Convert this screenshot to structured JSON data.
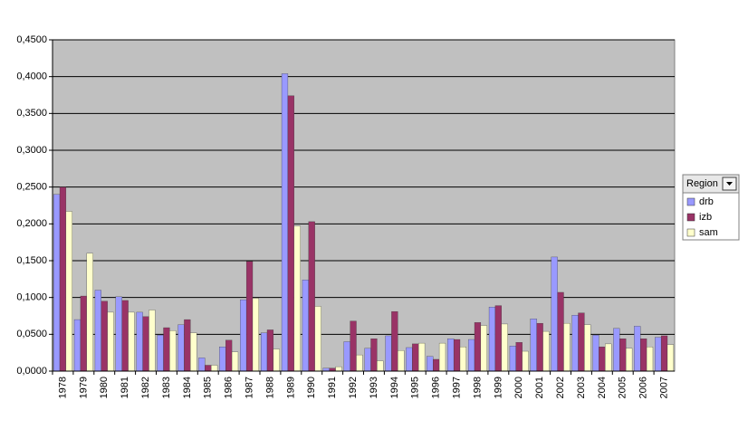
{
  "chart_data": {
    "type": "bar",
    "categories": [
      "1978",
      "1979",
      "1980",
      "1981",
      "1982",
      "1983",
      "1984",
      "1985",
      "1986",
      "1987",
      "1988",
      "1989",
      "1990",
      "1991",
      "1992",
      "1993",
      "1994",
      "1995",
      "1996",
      "1997",
      "1998",
      "1999",
      "2000",
      "2001",
      "2002",
      "2003",
      "2004",
      "2005",
      "2006",
      "2007"
    ],
    "series": [
      {
        "name": "drb",
        "color": "#9999ff",
        "values": [
          0.24,
          0.07,
          0.11,
          0.101,
          0.08,
          0.049,
          0.063,
          0.018,
          0.033,
          0.097,
          0.052,
          0.404,
          0.124,
          0.004,
          0.04,
          0.031,
          0.048,
          0.032,
          0.02,
          0.044,
          0.043,
          0.087,
          0.034,
          0.071,
          0.155,
          0.076,
          0.049,
          0.058,
          0.061,
          0.046
        ]
      },
      {
        "name": "izb",
        "color": "#993366",
        "values": [
          0.25,
          0.102,
          0.095,
          0.096,
          0.074,
          0.059,
          0.07,
          0.008,
          0.042,
          0.149,
          0.056,
          0.374,
          0.203,
          0.004,
          0.068,
          0.044,
          0.081,
          0.037,
          0.016,
          0.043,
          0.066,
          0.089,
          0.039,
          0.065,
          0.107,
          0.079,
          0.033,
          0.044,
          0.044,
          0.048
        ]
      },
      {
        "name": "sam",
        "color": "#ffffcc",
        "values": [
          0.217,
          0.16,
          0.08,
          0.08,
          0.083,
          0.055,
          0.052,
          0.008,
          0.026,
          0.099,
          0.03,
          0.197,
          0.088,
          0.006,
          0.022,
          0.014,
          0.028,
          0.038,
          0.038,
          0.033,
          0.062,
          0.064,
          0.027,
          0.054,
          0.065,
          0.063,
          0.037,
          0.031,
          0.033,
          0.036
        ]
      }
    ],
    "legend_title": "Region",
    "ylim": [
      0,
      0.45
    ],
    "yticks": [
      {
        "value": 0,
        "label": "0,0000"
      },
      {
        "value": 0.05,
        "label": "0,0500"
      },
      {
        "value": 0.1,
        "label": "0,1000"
      },
      {
        "value": 0.15,
        "label": "0,1500"
      },
      {
        "value": 0.2,
        "label": "0,2000"
      },
      {
        "value": 0.25,
        "label": "0,2500"
      },
      {
        "value": 0.3,
        "label": "0,3000"
      },
      {
        "value": 0.35,
        "label": "0,3500"
      },
      {
        "value": 0.4,
        "label": "0,4000"
      },
      {
        "value": 0.45,
        "label": "0,4500"
      }
    ],
    "grid": true
  }
}
